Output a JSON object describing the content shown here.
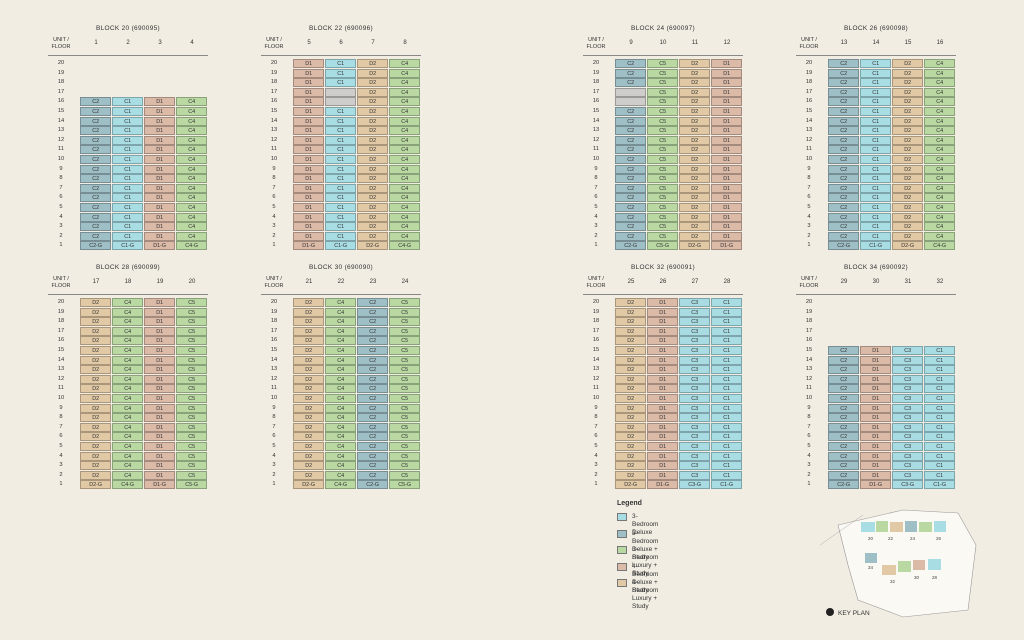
{
  "colors": {
    "C1": "#a9dde4",
    "C2": "#9fbfc6",
    "C3": "#a8dbe2",
    "C4": "#b9d8a2",
    "C5": "#b9d8a2",
    "D1": "#dcbaa8",
    "D2": "#e2c9a5",
    "blank": "#cfcdcb"
  },
  "floor_header": "UNIT /\nFLOOR",
  "blocks": [
    {
      "title": "BLOCK 20 (690095)",
      "units": [
        "1",
        "2",
        "3",
        "4"
      ],
      "floors": 16,
      "pattern": [
        "C2",
        "C1",
        "D1",
        "C4"
      ],
      "ground": [
        "C2-G",
        "C1-G",
        "D1-G",
        "C4-G"
      ]
    },
    {
      "title": "BLOCK 22 (690096)",
      "units": [
        "5",
        "6",
        "7",
        "8"
      ],
      "floors": 20,
      "pattern": [
        "D1",
        "C1",
        "D2",
        "C4"
      ],
      "ground": [
        "D1-G",
        "C1-G",
        "D2-G",
        "C4-G"
      ],
      "blanks": [
        [
          17,
          1
        ],
        [
          16,
          1
        ]
      ]
    },
    {
      "title": "BLOCK 24 (690097)",
      "units": [
        "9",
        "10",
        "11",
        "12"
      ],
      "floors": 20,
      "pattern": [
        "C2",
        "C5",
        "D2",
        "D1"
      ],
      "ground": [
        "C2-G",
        "C5-G",
        "D2-G",
        "D1-G"
      ],
      "blanks": [
        [
          17,
          0
        ],
        [
          16,
          0
        ]
      ]
    },
    {
      "title": "BLOCK 26 (690098)",
      "units": [
        "13",
        "14",
        "15",
        "16"
      ],
      "floors": 20,
      "pattern": [
        "C2",
        "C1",
        "D2",
        "C4"
      ],
      "ground": [
        "C2-G",
        "C1-G",
        "D2-G",
        "C4-G"
      ]
    },
    {
      "title": "BLOCK 28 (690099)",
      "units": [
        "17",
        "18",
        "19",
        "20"
      ],
      "floors": 20,
      "pattern": [
        "D2",
        "C4",
        "D1",
        "C5"
      ],
      "ground": [
        "D2-G",
        "C4-G",
        "D1-G",
        "C5-G"
      ]
    },
    {
      "title": "BLOCK 30 (690090)",
      "units": [
        "21",
        "22",
        "23",
        "24"
      ],
      "floors": 20,
      "pattern": [
        "D2",
        "C4",
        "C2",
        "C5"
      ],
      "ground": [
        "D2-G",
        "C4-G",
        "C2-G",
        "C5-G"
      ]
    },
    {
      "title": "BLOCK 32 (690091)",
      "units": [
        "25",
        "26",
        "27",
        "28"
      ],
      "floors": 20,
      "pattern": [
        "D2",
        "D1",
        "C3",
        "C1"
      ],
      "ground": [
        "D2-G",
        "D1-G",
        "C3-G",
        "C1-G"
      ]
    },
    {
      "title": "BLOCK 34 (690092)",
      "units": [
        "29",
        "30",
        "31",
        "32"
      ],
      "floors": 15,
      "pattern": [
        "C2",
        "D1",
        "C3",
        "C1"
      ],
      "ground": [
        "C2-G",
        "D1-G",
        "C3-G",
        "C1-G"
      ]
    }
  ],
  "legend": {
    "title": "Legend",
    "items": [
      {
        "label": "3-Bedroom Deluxe",
        "color": "#a9dde4"
      },
      {
        "label": "3-Bedroom Deluxe + Study",
        "color": "#9fbfc6"
      },
      {
        "label": "3-Bedroom Luxury + Study",
        "color": "#b9d8a2"
      },
      {
        "label": "4-Bedroom Deluxe + Study",
        "color": "#dcbaa8"
      },
      {
        "label": "4-Bedroom Luxury + Study",
        "color": "#e2c9a5"
      }
    ]
  },
  "key_plan": {
    "label": "KEY PLAN",
    "block_numbers": [
      "20",
      "22",
      "24",
      "26",
      "34",
      "32",
      "30",
      "28"
    ]
  }
}
